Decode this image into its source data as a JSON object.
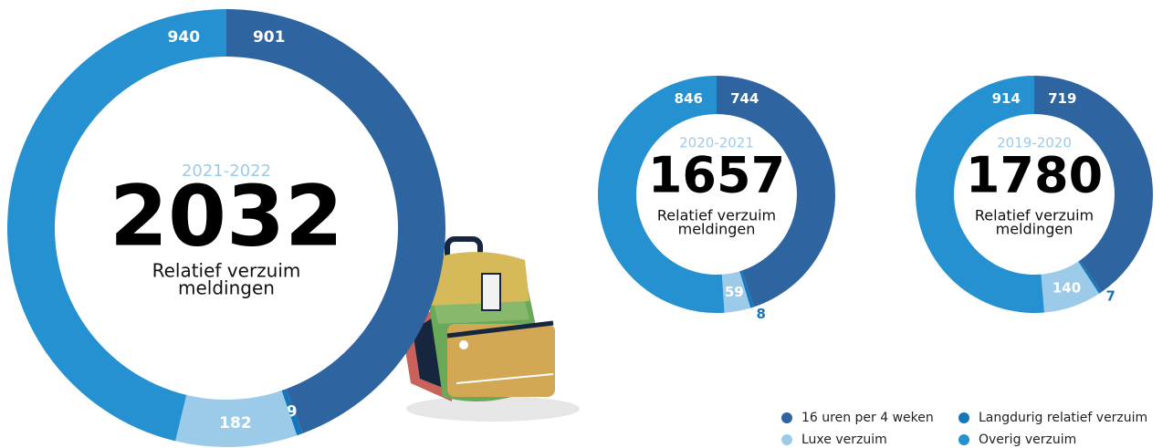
{
  "chart_data": [
    {
      "type": "donut",
      "title": "2021-2022",
      "total": 2032,
      "label_lines": [
        "Relatief verzuim",
        "meldingen"
      ],
      "values": [
        901,
        9,
        182,
        940
      ]
    },
    {
      "type": "donut",
      "title": "2020-2021",
      "total": 1657,
      "label_lines": [
        "Relatief verzuim",
        "meldingen"
      ],
      "values": [
        744,
        8,
        59,
        846
      ]
    },
    {
      "type": "donut",
      "title": "2019-2020",
      "total": 1780,
      "label_lines": [
        "Relatief verzuim",
        "meldingen"
      ],
      "values": [
        719,
        7,
        140,
        914
      ]
    }
  ],
  "legend": {
    "position": "bottom-right",
    "items": [
      {
        "name": "16 uren per 4 weken",
        "color": "#2e64a0"
      },
      {
        "name": "Langdurig relatief verzuim",
        "color": "#1477bb"
      },
      {
        "name": "Luxe verzuim",
        "color": "#9ccbea"
      },
      {
        "name": "Overig verzuim",
        "color": "#2591d1"
      }
    ]
  }
}
